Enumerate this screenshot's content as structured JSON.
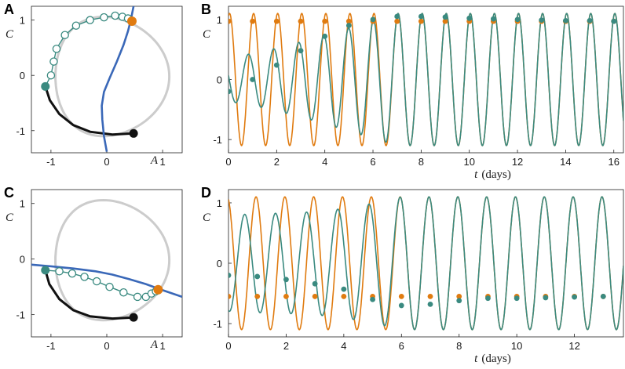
{
  "colors": {
    "limit_cycle": "#cccccc",
    "trajectory": "#3a8a80",
    "fixed_trajectory": "#e07b10",
    "isochron": "#3a68b8",
    "dark_path": "#111111"
  },
  "chart_data": [
    {
      "id": "A",
      "panel_label": "A",
      "type": "line",
      "xlabel": "A",
      "ylabel": "C",
      "xlim": [
        -1.35,
        1.35
      ],
      "ylim": [
        -1.4,
        1.25
      ],
      "xticks": [
        -1,
        0,
        1
      ],
      "xtick_labels": [
        "-1",
        "0",
        "1"
      ],
      "yticks": [
        -1,
        0,
        1
      ],
      "ytick_labels": [
        "-1",
        "0",
        "1"
      ],
      "isochron": [
        [
          0.0,
          -1.38
        ],
        [
          -0.05,
          -1.1
        ],
        [
          -0.08,
          -0.8
        ],
        [
          -0.09,
          -0.55
        ],
        [
          -0.05,
          -0.3
        ],
        [
          0.05,
          -0.05
        ],
        [
          0.18,
          0.25
        ],
        [
          0.3,
          0.55
        ],
        [
          0.38,
          0.8
        ],
        [
          0.43,
          1.0
        ],
        [
          0.48,
          1.25
        ]
      ],
      "black_path": [
        [
          -1.1,
          -0.2
        ],
        [
          -1.02,
          -0.45
        ],
        [
          -0.85,
          -0.7
        ],
        [
          -0.6,
          -0.9
        ],
        [
          -0.3,
          -1.02
        ],
        [
          0.1,
          -1.07
        ],
        [
          0.48,
          -1.05
        ]
      ],
      "start_point": [
        -1.1,
        -0.2
      ],
      "end_point_black": [
        0.48,
        -1.05
      ],
      "orange_point": [
        0.45,
        0.98
      ],
      "stimulated_points": [
        [
          -1.1,
          -0.2
        ],
        [
          -1.0,
          0.0
        ],
        [
          -0.95,
          0.25
        ],
        [
          -0.9,
          0.48
        ],
        [
          -0.75,
          0.73
        ],
        [
          -0.55,
          0.9
        ],
        [
          -0.3,
          1.0
        ],
        [
          -0.05,
          1.05
        ],
        [
          0.15,
          1.08
        ],
        [
          0.28,
          1.06
        ],
        [
          0.38,
          1.03
        ],
        [
          0.45,
          0.98
        ]
      ]
    },
    {
      "id": "B",
      "panel_label": "B",
      "type": "line",
      "xlabel": "t (days)",
      "xlabel_var": "t",
      "xlabel_unit": "(days)",
      "ylabel": "C",
      "xlim": [
        0,
        16.4
      ],
      "ylim": [
        -1.22,
        1.22
      ],
      "xticks": [
        0,
        2,
        4,
        6,
        8,
        10,
        12,
        14,
        16
      ],
      "xtick_labels": [
        "0",
        "2",
        "4",
        "6",
        "8",
        "10",
        "12",
        "14",
        "16"
      ],
      "yticks": [
        -1,
        0,
        1
      ],
      "ytick_labels": [
        "-1",
        "0",
        "1"
      ],
      "orange_series": {
        "amplitude": 1.1,
        "period": 1.0,
        "phase": 1.3,
        "marker_value": 0.97
      },
      "teal_series": {
        "amplitude": 1.1,
        "period": 1.0,
        "phase": 1.3,
        "start": -0.2,
        "initial_amp": 0.45,
        "transient_days": 7.0,
        "phase_shift": 1.2
      },
      "teal_markers": [
        [
          0,
          -0.2
        ],
        [
          1,
          0.0
        ],
        [
          2,
          0.24
        ],
        [
          3,
          0.48
        ],
        [
          4,
          0.72
        ],
        [
          5,
          0.9
        ],
        [
          6,
          1.0
        ],
        [
          7,
          1.05
        ],
        [
          8,
          1.05
        ],
        [
          9,
          1.04
        ],
        [
          10,
          1.02
        ],
        [
          11,
          1.01
        ],
        [
          12,
          1.0
        ],
        [
          13,
          0.99
        ],
        [
          14,
          0.98
        ],
        [
          15,
          0.98
        ],
        [
          16,
          0.97
        ]
      ],
      "orange_markers": [
        [
          0,
          0.97
        ],
        [
          1,
          0.97
        ],
        [
          2,
          0.97
        ],
        [
          3,
          0.97
        ],
        [
          4,
          0.97
        ],
        [
          5,
          0.97
        ],
        [
          6,
          0.97
        ],
        [
          7,
          0.97
        ],
        [
          8,
          0.97
        ],
        [
          9,
          0.97
        ],
        [
          10,
          0.97
        ],
        [
          11,
          0.97
        ],
        [
          12,
          0.97
        ],
        [
          13,
          0.97
        ],
        [
          14,
          0.97
        ],
        [
          15,
          0.97
        ],
        [
          16,
          0.97
        ]
      ]
    },
    {
      "id": "C",
      "panel_label": "C",
      "type": "line",
      "xlabel": "A",
      "ylabel": "C",
      "xlim": [
        -1.35,
        1.35
      ],
      "ylim": [
        -1.4,
        1.25
      ],
      "xticks": [
        -1,
        0,
        1
      ],
      "xtick_labels": [
        "-1",
        "0",
        "1"
      ],
      "yticks": [
        -1,
        0,
        1
      ],
      "ytick_labels": [
        "-1",
        "0",
        "1"
      ],
      "isochron": [
        [
          -1.35,
          -0.1
        ],
        [
          -1.0,
          -0.13
        ],
        [
          -0.6,
          -0.17
        ],
        [
          -0.2,
          -0.22
        ],
        [
          0.1,
          -0.28
        ],
        [
          0.4,
          -0.36
        ],
        [
          0.7,
          -0.45
        ],
        [
          1.0,
          -0.56
        ],
        [
          1.35,
          -0.68
        ]
      ],
      "black_path": [
        [
          -1.1,
          -0.2
        ],
        [
          -1.03,
          -0.45
        ],
        [
          -0.85,
          -0.72
        ],
        [
          -0.6,
          -0.92
        ],
        [
          -0.3,
          -1.03
        ],
        [
          0.1,
          -1.07
        ],
        [
          0.48,
          -1.05
        ]
      ],
      "start_point": [
        -1.1,
        -0.2
      ],
      "end_point_black": [
        0.48,
        -1.05
      ],
      "orange_point": [
        0.92,
        -0.55
      ],
      "stimulated_points": [
        [
          -1.1,
          -0.2
        ],
        [
          -0.85,
          -0.22
        ],
        [
          -0.62,
          -0.26
        ],
        [
          -0.4,
          -0.32
        ],
        [
          -0.18,
          -0.4
        ],
        [
          0.05,
          -0.5
        ],
        [
          0.3,
          -0.6
        ],
        [
          0.55,
          -0.68
        ],
        [
          0.7,
          -0.68
        ],
        [
          0.8,
          -0.62
        ],
        [
          0.88,
          -0.58
        ],
        [
          0.92,
          -0.55
        ]
      ]
    },
    {
      "id": "D",
      "panel_label": "D",
      "type": "line",
      "xlabel": "t (days)",
      "xlabel_var": "t",
      "xlabel_unit": "(days)",
      "ylabel": "C",
      "xlim": [
        0,
        13.7
      ],
      "ylim": [
        -1.22,
        1.22
      ],
      "xticks": [
        0,
        2,
        4,
        6,
        8,
        10,
        12
      ],
      "xtick_labels": [
        "0",
        "2",
        "4",
        "6",
        "8",
        "10",
        "12"
      ],
      "yticks": [
        -1,
        0,
        1
      ],
      "ytick_labels": [
        "-1",
        "0",
        "1"
      ],
      "orange_series": {
        "amplitude": 1.1,
        "period": 1.0,
        "phase": 1.85,
        "marker_value": -0.55
      },
      "teal_series": {
        "amplitude": 1.1,
        "period": 1.0,
        "phase": 1.85,
        "start": -0.2,
        "initial_amp": 0.6,
        "transient_days": 6.0,
        "phase_shift": 2.6
      },
      "teal_markers": [
        [
          0,
          -0.2
        ],
        [
          1,
          -0.22
        ],
        [
          2,
          -0.27
        ],
        [
          3,
          -0.34
        ],
        [
          4,
          -0.43
        ],
        [
          5,
          -0.6
        ],
        [
          6,
          -0.7
        ],
        [
          7,
          -0.68
        ],
        [
          8,
          -0.62
        ],
        [
          9,
          -0.58
        ],
        [
          10,
          -0.58
        ],
        [
          11,
          -0.57
        ],
        [
          12,
          -0.56
        ],
        [
          13,
          -0.55
        ]
      ],
      "orange_markers": [
        [
          0,
          -0.55
        ],
        [
          1,
          -0.55
        ],
        [
          2,
          -0.55
        ],
        [
          3,
          -0.55
        ],
        [
          4,
          -0.55
        ],
        [
          5,
          -0.55
        ],
        [
          6,
          -0.55
        ],
        [
          7,
          -0.55
        ],
        [
          8,
          -0.55
        ],
        [
          9,
          -0.55
        ],
        [
          10,
          -0.55
        ],
        [
          11,
          -0.55
        ],
        [
          12,
          -0.55
        ],
        [
          13,
          -0.55
        ]
      ]
    }
  ]
}
